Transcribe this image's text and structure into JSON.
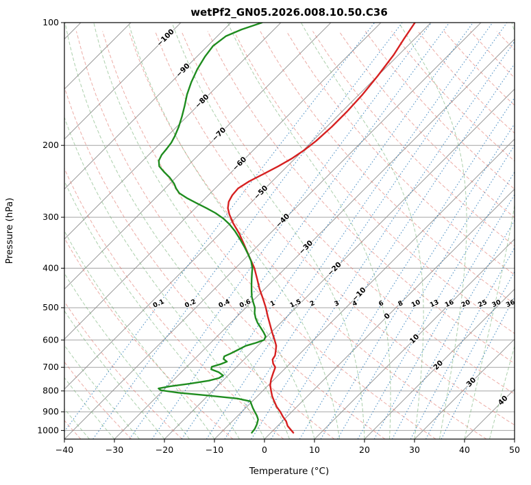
{
  "chart_data": {
    "type": "skewt_logp",
    "title": "wetPf2_GN05.2026.008.10.50.C36",
    "xlabel": "Temperature (°C)",
    "ylabel": "Pressure (hPa)",
    "xlim": [
      -40,
      50
    ],
    "p_bottom": 1050,
    "p_top": 100,
    "x_ticks": [
      -40,
      -30,
      -20,
      -10,
      0,
      10,
      20,
      30,
      40,
      50
    ],
    "y_ticks": [
      100,
      200,
      300,
      400,
      500,
      600,
      700,
      800,
      900,
      1000
    ],
    "skew_degrees": 45,
    "grid": true,
    "isotherms": {
      "min": -120,
      "max": 50,
      "step": 10
    },
    "dry_adiabats_c": {
      "min": -40,
      "max": 190,
      "step": 10
    },
    "moist_adiabats_c": {
      "min": -40,
      "max": 50,
      "step": 5
    },
    "mixing_ratios_gkg": [
      0.1,
      0.2,
      0.4,
      0.6,
      1,
      1.5,
      2,
      3,
      4,
      6,
      8,
      10,
      13,
      16,
      20,
      25,
      30,
      36
    ],
    "mixing_label_pressure_hpa": 490,
    "isotherm_labels": [
      {
        "t": -100,
        "p": 109
      },
      {
        "t": -90,
        "p": 131
      },
      {
        "t": -80,
        "p": 156
      },
      {
        "t": -70,
        "p": 188
      },
      {
        "t": -60,
        "p": 222
      },
      {
        "t": -50,
        "p": 261
      },
      {
        "t": -40,
        "p": 306
      },
      {
        "t": -30,
        "p": 356
      },
      {
        "t": -20,
        "p": 402
      },
      {
        "t": -10,
        "p": 464
      },
      {
        "t": 0,
        "p": 525
      },
      {
        "t": 10,
        "p": 597
      },
      {
        "t": 20,
        "p": 692
      },
      {
        "t": 30,
        "p": 762
      },
      {
        "t": 40,
        "p": 845
      }
    ],
    "series": [
      {
        "name": "temperature",
        "color": "#d62020",
        "points_p_t": [
          [
            1013,
            4.5
          ],
          [
            975,
            2.0
          ],
          [
            950,
            0.8
          ],
          [
            925,
            -0.8
          ],
          [
            900,
            -2.3
          ],
          [
            875,
            -4.0
          ],
          [
            850,
            -5.5
          ],
          [
            825,
            -7.0
          ],
          [
            800,
            -8.3
          ],
          [
            775,
            -9.6
          ],
          [
            750,
            -10.6
          ],
          [
            725,
            -11.4
          ],
          [
            700,
            -12.2
          ],
          [
            685,
            -13.4
          ],
          [
            670,
            -14.3
          ],
          [
            655,
            -14.6
          ],
          [
            640,
            -15.3
          ],
          [
            620,
            -16.3
          ],
          [
            600,
            -17.8
          ],
          [
            575,
            -19.8
          ],
          [
            550,
            -21.8
          ],
          [
            525,
            -23.9
          ],
          [
            500,
            -26.0
          ],
          [
            475,
            -28.4
          ],
          [
            450,
            -31.0
          ],
          [
            425,
            -33.5
          ],
          [
            400,
            -36.2
          ],
          [
            375,
            -39.5
          ],
          [
            350,
            -43.0
          ],
          [
            330,
            -46.0
          ],
          [
            310,
            -49.5
          ],
          [
            295,
            -52.0
          ],
          [
            285,
            -53.5
          ],
          [
            275,
            -54.6
          ],
          [
            265,
            -55.2
          ],
          [
            255,
            -55.4
          ],
          [
            245,
            -54.6
          ],
          [
            235,
            -53.2
          ],
          [
            225,
            -51.8
          ],
          [
            215,
            -50.6
          ],
          [
            205,
            -49.8
          ],
          [
            195,
            -49.3
          ],
          [
            180,
            -49.0
          ],
          [
            165,
            -49.0
          ],
          [
            150,
            -49.3
          ],
          [
            135,
            -50.0
          ],
          [
            120,
            -51.0
          ],
          [
            110,
            -52.1
          ],
          [
            100,
            -53.2
          ]
        ]
      },
      {
        "name": "dewpoint",
        "color": "#1e8c1e",
        "points_p_t": [
          [
            1013,
            -3.8
          ],
          [
            990,
            -4.0
          ],
          [
            965,
            -4.5
          ],
          [
            940,
            -5.2
          ],
          [
            920,
            -6.2
          ],
          [
            900,
            -7.4
          ],
          [
            880,
            -8.6
          ],
          [
            862,
            -9.6
          ],
          [
            848,
            -10.4
          ],
          [
            835,
            -13.5
          ],
          [
            820,
            -20.5
          ],
          [
            808,
            -26.5
          ],
          [
            797,
            -30.5
          ],
          [
            789,
            -31.3
          ],
          [
            780,
            -29.5
          ],
          [
            768,
            -26.0
          ],
          [
            755,
            -22.8
          ],
          [
            744,
            -21.3
          ],
          [
            733,
            -21.0
          ],
          [
            720,
            -22.5
          ],
          [
            708,
            -24.6
          ],
          [
            698,
            -25.0
          ],
          [
            688,
            -23.8
          ],
          [
            678,
            -23.0
          ],
          [
            668,
            -24.2
          ],
          [
            658,
            -24.6
          ],
          [
            648,
            -23.9
          ],
          [
            635,
            -23.2
          ],
          [
            620,
            -22.4
          ],
          [
            610,
            -21.0
          ],
          [
            600,
            -19.9
          ],
          [
            588,
            -20.3
          ],
          [
            575,
            -21.5
          ],
          [
            560,
            -23.0
          ],
          [
            545,
            -24.6
          ],
          [
            530,
            -26.0
          ],
          [
            515,
            -27.2
          ],
          [
            500,
            -28.2
          ],
          [
            485,
            -29.6
          ],
          [
            470,
            -31.0
          ],
          [
            455,
            -32.2
          ],
          [
            440,
            -33.4
          ],
          [
            425,
            -34.6
          ],
          [
            410,
            -35.8
          ],
          [
            400,
            -36.6
          ],
          [
            385,
            -38.2
          ],
          [
            370,
            -40.2
          ],
          [
            355,
            -42.4
          ],
          [
            340,
            -44.8
          ],
          [
            325,
            -47.4
          ],
          [
            312,
            -50.0
          ],
          [
            302,
            -52.4
          ],
          [
            293,
            -55.0
          ],
          [
            285,
            -57.8
          ],
          [
            277,
            -60.8
          ],
          [
            269,
            -63.8
          ],
          [
            262,
            -66.2
          ],
          [
            255,
            -67.8
          ],
          [
            248,
            -69.2
          ],
          [
            240,
            -71.2
          ],
          [
            232,
            -73.6
          ],
          [
            225,
            -75.6
          ],
          [
            218,
            -76.8
          ],
          [
            211,
            -77.4
          ],
          [
            204,
            -77.6
          ],
          [
            197,
            -77.9
          ],
          [
            190,
            -78.5
          ],
          [
            180,
            -79.6
          ],
          [
            170,
            -81.0
          ],
          [
            160,
            -82.6
          ],
          [
            150,
            -84.4
          ],
          [
            140,
            -86.0
          ],
          [
            130,
            -87.4
          ],
          [
            121,
            -88.4
          ],
          [
            114,
            -88.9
          ],
          [
            108,
            -88.3
          ],
          [
            104,
            -86.5
          ],
          [
            101,
            -84.5
          ],
          [
            100,
            -83.8
          ]
        ]
      }
    ],
    "colors": {
      "isobar": "#a3a3a3",
      "isotherm": "#8f8f8f",
      "dry_adiabat": "#e0756a",
      "moist_adiabat": "#74b074",
      "mixing_ratio": "#2a7ab9",
      "isotherm_label_negative": "#1f77b4",
      "isotherm_label_zero": "#808080",
      "isotherm_label_positive": "#c0392b",
      "mixing_label": "#1f77b4",
      "temperature": "#d62020",
      "dewpoint": "#1e8c1e"
    }
  }
}
